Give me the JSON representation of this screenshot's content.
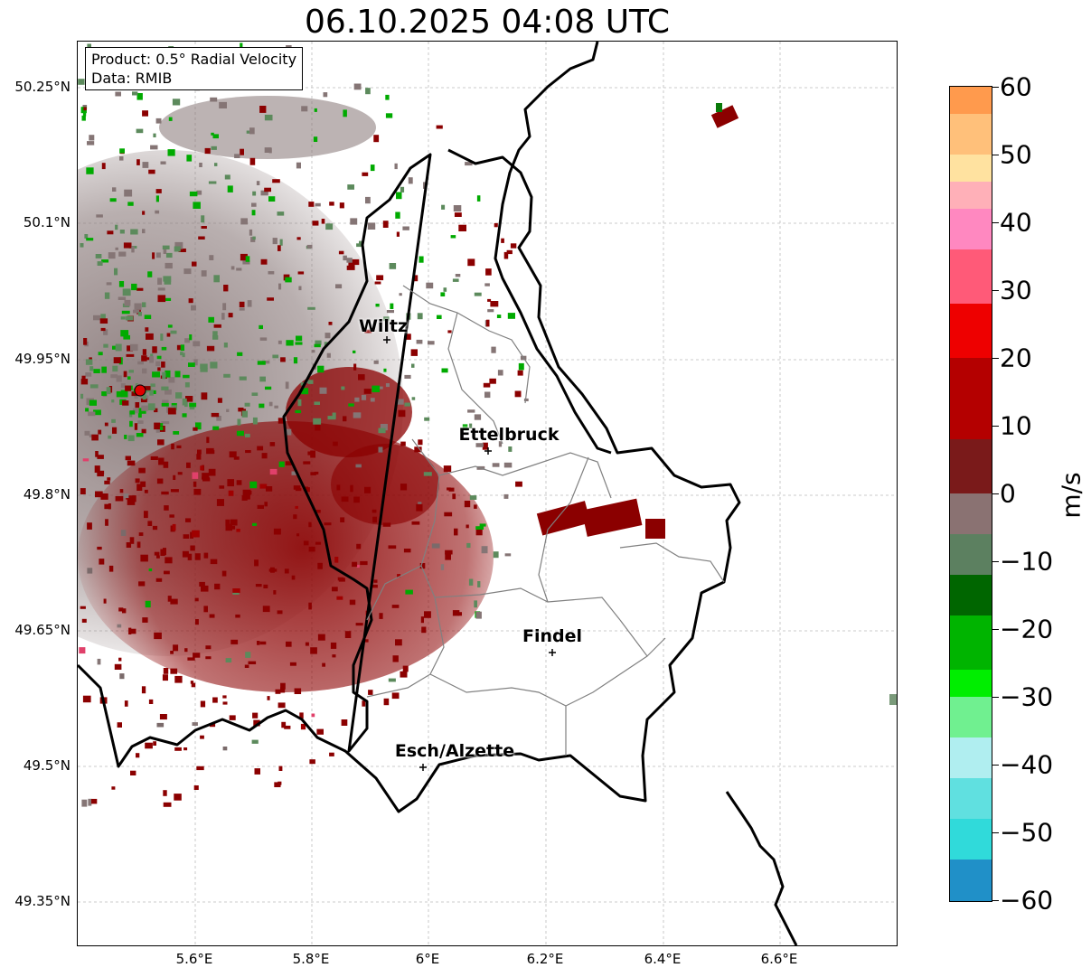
{
  "title": "06.10.2025 04:08 UTC",
  "info": {
    "product": "Product: 0.5° Radial Velocity",
    "data": "Data: RMIB"
  },
  "lat_ticks": [
    "50.25°N",
    "50.1°N",
    "49.95°N",
    "49.8°N",
    "49.65°N",
    "49.5°N",
    "49.35°N"
  ],
  "lon_ticks": [
    "5.6°E",
    "5.8°E",
    "6°E",
    "6.2°E",
    "6.4°E",
    "6.6°E"
  ],
  "cities": [
    {
      "name": "Wiltz"
    },
    {
      "name": "Ettelbruck"
    },
    {
      "name": "Findel"
    },
    {
      "name": "Esch/Alzette"
    }
  ],
  "colorbar": {
    "unit": "m/s",
    "ticks": [
      "60",
      "50",
      "40",
      "30",
      "20",
      "10",
      "0",
      "−10",
      "−20",
      "−30",
      "−40",
      "−50",
      "−60"
    ],
    "range": [
      -60,
      60
    ]
  },
  "colors": {
    "radar_site": "#e00000",
    "border": "#000000",
    "canton": "#808080",
    "grid": "#bbbbbb"
  }
}
